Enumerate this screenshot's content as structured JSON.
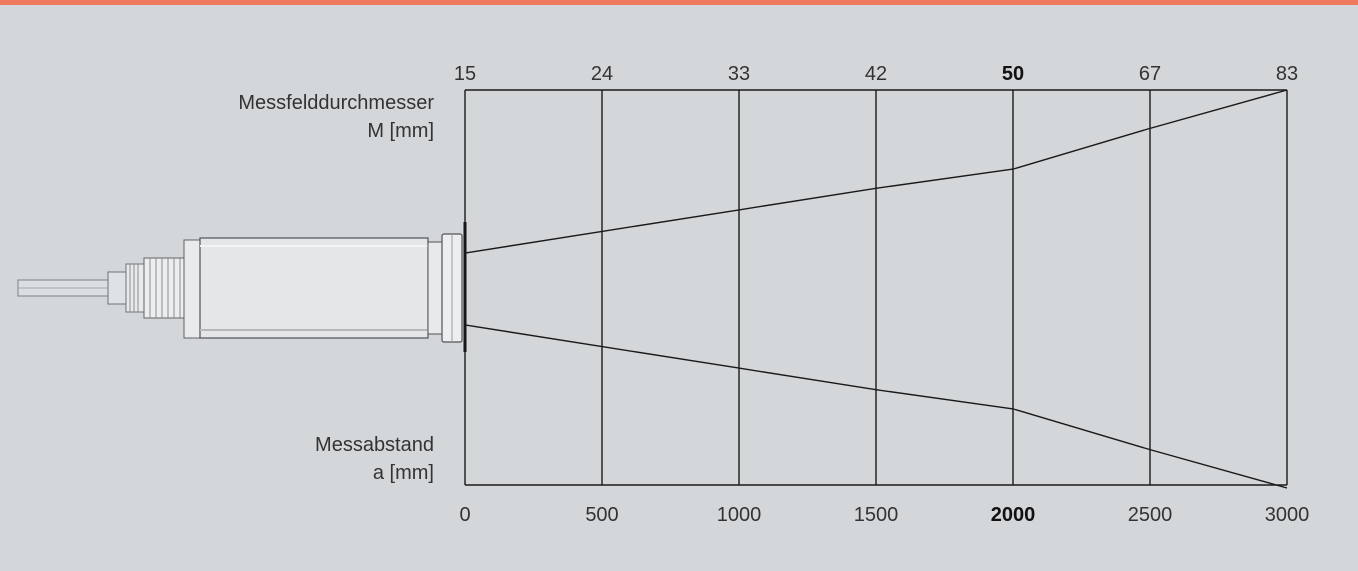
{
  "labels": {
    "top_line1": "Messfelddurchmesser",
    "top_line2": "M [mm]",
    "bottom_line1": "Messabstand",
    "bottom_line2": "a [mm]"
  },
  "colors": {
    "background": "#d4d7d9",
    "accent_bar": "#ef7a5f",
    "line": "#1a1a1a"
  },
  "chart_data": {
    "type": "line",
    "distance": [
      0,
      500,
      1000,
      1500,
      2000,
      2500,
      3000
    ],
    "spot_diameter": [
      15,
      24,
      33,
      42,
      50,
      67,
      83
    ],
    "highlight_index": 4,
    "top_ticks": [
      "15",
      "24",
      "33",
      "42",
      "50",
      "67",
      "83"
    ],
    "bottom_ticks": [
      "0",
      "500",
      "1000",
      "1500",
      "2000",
      "2500",
      "3000"
    ],
    "top_label": "Messfelddurchmesser M [mm]",
    "bottom_label": "Messabstand a [mm]"
  }
}
